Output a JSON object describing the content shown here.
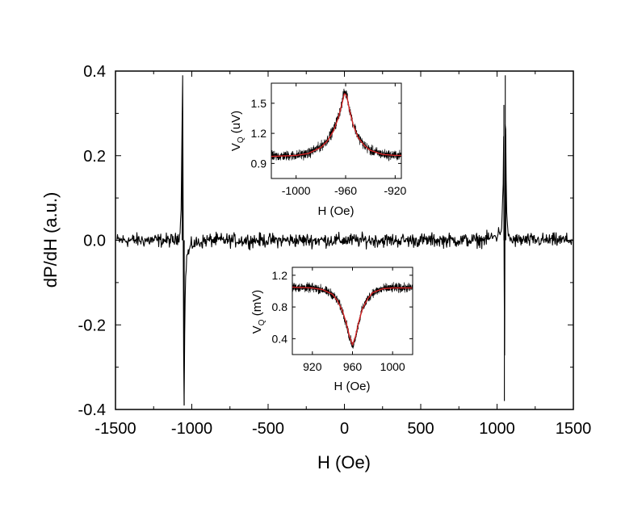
{
  "chart_data": [
    {
      "id": "main",
      "type": "line",
      "title": "",
      "xlabel": "H (Oe)",
      "ylabel": "dP/dH (a.u.)",
      "xlim": [
        -1500,
        1500
      ],
      "ylim": [
        -0.4,
        0.4
      ],
      "xticks": [
        -1500,
        -1000,
        -500,
        0,
        500,
        1000,
        1500
      ],
      "xtick_labels": [
        "-1500",
        "-1000",
        "-500",
        "0",
        "500",
        "1000",
        "1500"
      ],
      "yticks": [
        -0.4,
        -0.2,
        0.0,
        0.2,
        0.4
      ],
      "ytick_labels": [
        "-0.4",
        "-0.2",
        "0.0",
        "0.2",
        "0.4"
      ],
      "grid": false,
      "series": [
        {
          "color": "#000000",
          "x": [
            -1490,
            -1400,
            -1300,
            -1200,
            -1100,
            -1075,
            -1068,
            -1063,
            -1060,
            -1057,
            -1054,
            -1050,
            -1045,
            -1035,
            -1000,
            -900,
            -700,
            -500,
            -300,
            -100,
            0,
            100,
            300,
            500,
            700,
            900,
            1000,
            1030,
            1040,
            1045,
            1048,
            1051,
            1054,
            1057,
            1062,
            1070,
            1090,
            1200,
            1300,
            1400,
            1490
          ],
          "y": [
            0.0,
            0.0,
            0.0,
            0.0,
            0.0,
            0.02,
            0.12,
            0.3,
            0.39,
            0.1,
            -0.22,
            -0.39,
            -0.15,
            -0.04,
            -0.01,
            0.0,
            0.0,
            0.0,
            0.0,
            0.0,
            0.0,
            0.0,
            0.0,
            0.0,
            0.0,
            0.0,
            0.01,
            0.03,
            0.12,
            0.32,
            -0.38,
            -0.2,
            0.39,
            0.25,
            0.06,
            0.02,
            0.0,
            0.0,
            0.0,
            0.0,
            0.0
          ]
        }
      ]
    },
    {
      "id": "inset-top",
      "type": "line",
      "title": "",
      "xlabel": "H (Oe)",
      "ylabel_main": "V",
      "ylabel_sub": "Q",
      "ylabel_rest": " (uV)",
      "xlim": [
        -1020,
        -915
      ],
      "ylim": [
        0.75,
        1.7
      ],
      "xticks": [
        -1000,
        -960,
        -920
      ],
      "xtick_labels": [
        "-1000",
        "-960",
        "-920"
      ],
      "yticks": [
        0.9,
        1.2,
        1.5
      ],
      "ytick_labels": [
        "0.9",
        "1.2",
        "1.5"
      ],
      "grid": false,
      "series": [
        {
          "color": "#000000",
          "x": [
            -1020,
            -1000,
            -990,
            -980,
            -975,
            -970,
            -966,
            -963,
            -961,
            -959,
            -957,
            -954,
            -950,
            -945,
            -940,
            -930,
            -920,
            -915
          ],
          "y": [
            0.97,
            0.98,
            1.0,
            1.07,
            1.13,
            1.23,
            1.36,
            1.5,
            1.62,
            1.58,
            1.45,
            1.3,
            1.17,
            1.08,
            1.03,
            0.99,
            0.98,
            0.98
          ]
        },
        {
          "color": "#d62728",
          "x": [
            -1020,
            -1000,
            -990,
            -980,
            -975,
            -970,
            -966,
            -963,
            -961,
            -959,
            -957,
            -954,
            -950,
            -945,
            -940,
            -930,
            -920,
            -915
          ],
          "y": [
            0.97,
            0.98,
            1.0,
            1.06,
            1.12,
            1.22,
            1.35,
            1.49,
            1.6,
            1.57,
            1.44,
            1.29,
            1.16,
            1.08,
            1.03,
            0.99,
            0.98,
            0.98
          ]
        }
      ]
    },
    {
      "id": "inset-bottom",
      "type": "line",
      "title": "",
      "xlabel": "H (Oe)",
      "ylabel_main": "V",
      "ylabel_sub": "Q",
      "ylabel_rest": " (mV)",
      "xlim": [
        900,
        1020
      ],
      "ylim": [
        0.2,
        1.3
      ],
      "xticks": [
        920,
        960,
        1000
      ],
      "xtick_labels": [
        "920",
        "960",
        "1000"
      ],
      "yticks": [
        0.4,
        0.8,
        1.2
      ],
      "ytick_labels": [
        "0.4",
        "0.8",
        "1.2"
      ],
      "grid": false,
      "series": [
        {
          "color": "#000000",
          "x": [
            900,
            920,
            930,
            940,
            945,
            950,
            954,
            957,
            960,
            963,
            966,
            970,
            975,
            980,
            990,
            1000,
            1010,
            1020
          ],
          "y": [
            1.05,
            1.04,
            1.02,
            0.96,
            0.88,
            0.75,
            0.58,
            0.42,
            0.3,
            0.42,
            0.6,
            0.78,
            0.9,
            0.98,
            1.03,
            1.04,
            1.04,
            1.04
          ]
        },
        {
          "color": "#d62728",
          "x": [
            900,
            920,
            930,
            940,
            945,
            950,
            954,
            957,
            960,
            963,
            966,
            970,
            975,
            980,
            990,
            1000,
            1010,
            1020
          ],
          "y": [
            1.05,
            1.04,
            1.02,
            0.96,
            0.88,
            0.75,
            0.59,
            0.43,
            0.32,
            0.43,
            0.6,
            0.78,
            0.9,
            0.98,
            1.03,
            1.04,
            1.04,
            1.04
          ]
        }
      ]
    }
  ]
}
